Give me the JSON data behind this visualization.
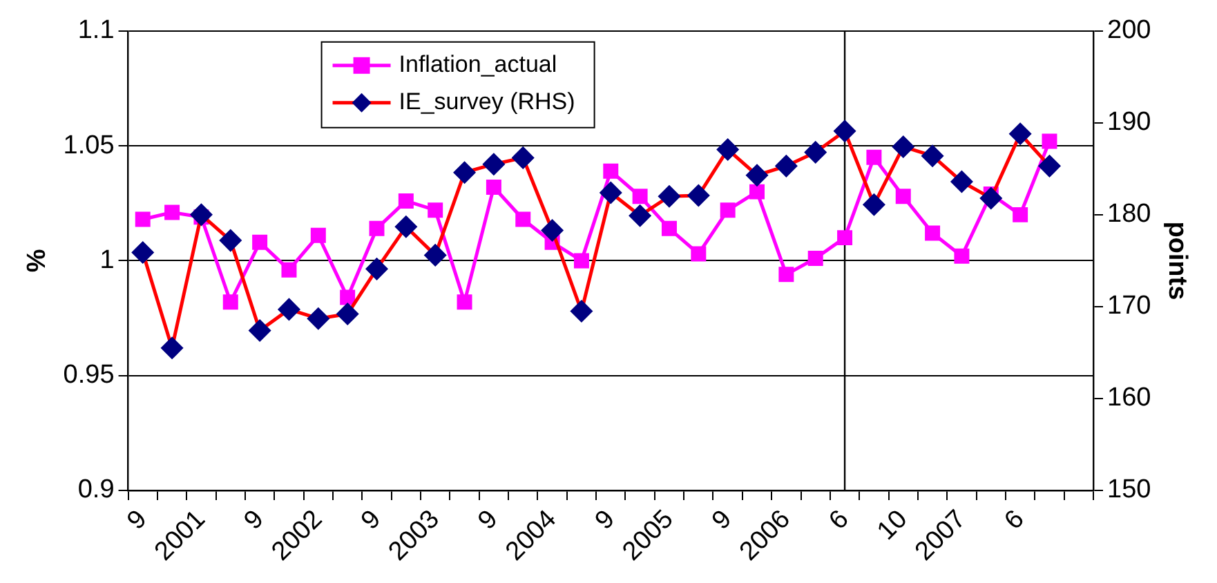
{
  "chart_data": {
    "type": "line",
    "categories": [
      "9",
      null,
      "2001",
      null,
      "9",
      null,
      "2002",
      null,
      "9",
      null,
      "2003",
      null,
      "9",
      null,
      "2004",
      null,
      "9",
      null,
      "2005",
      null,
      "9",
      null,
      "2006",
      null,
      "6",
      null,
      "10",
      null,
      "2007",
      null,
      "6",
      null,
      null
    ],
    "series": [
      {
        "name": "Inflation_actual",
        "color": "#ff00ff",
        "marker": "square",
        "values": [
          1.018,
          1.021,
          1.019,
          0.982,
          1.008,
          0.996,
          1.011,
          0.984,
          1.014,
          1.026,
          1.022,
          0.982,
          1.032,
          1.018,
          1.008,
          1.0,
          1.039,
          1.028,
          1.014,
          1.003,
          1.022,
          1.03,
          0.994,
          1.001,
          1.01,
          1.045,
          1.028,
          1.012,
          1.002,
          1.029,
          1.02,
          1.052,
          null
        ]
      },
      {
        "name": "IE_survey (RHS)",
        "color": "#ff0000",
        "marker": "diamond",
        "axis": "y2",
        "values": [
          175.9,
          165.5,
          180.0,
          177.2,
          167.4,
          169.7,
          168.7,
          169.2,
          174.1,
          178.7,
          175.6,
          184.6,
          185.5,
          186.2,
          178.3,
          169.5,
          182.4,
          179.9,
          182.0,
          182.1,
          187.1,
          184.3,
          185.3,
          186.8,
          189.1,
          181.1,
          187.4,
          186.4,
          183.6,
          181.8,
          188.8,
          185.3,
          null
        ]
      }
    ],
    "ylabel": "%",
    "y2label": "points",
    "ylim": [
      0.9,
      1.1
    ],
    "yticks": [
      0.9,
      0.95,
      1,
      1.05,
      1.1
    ],
    "y2lim": [
      150,
      200
    ],
    "y2ticks": [
      150,
      160,
      170,
      180,
      190,
      200
    ],
    "ref_lines": [
      {
        "axis": "x",
        "value": "6",
        "color": "#000000"
      }
    ],
    "grid": "y",
    "legend": "top left"
  }
}
